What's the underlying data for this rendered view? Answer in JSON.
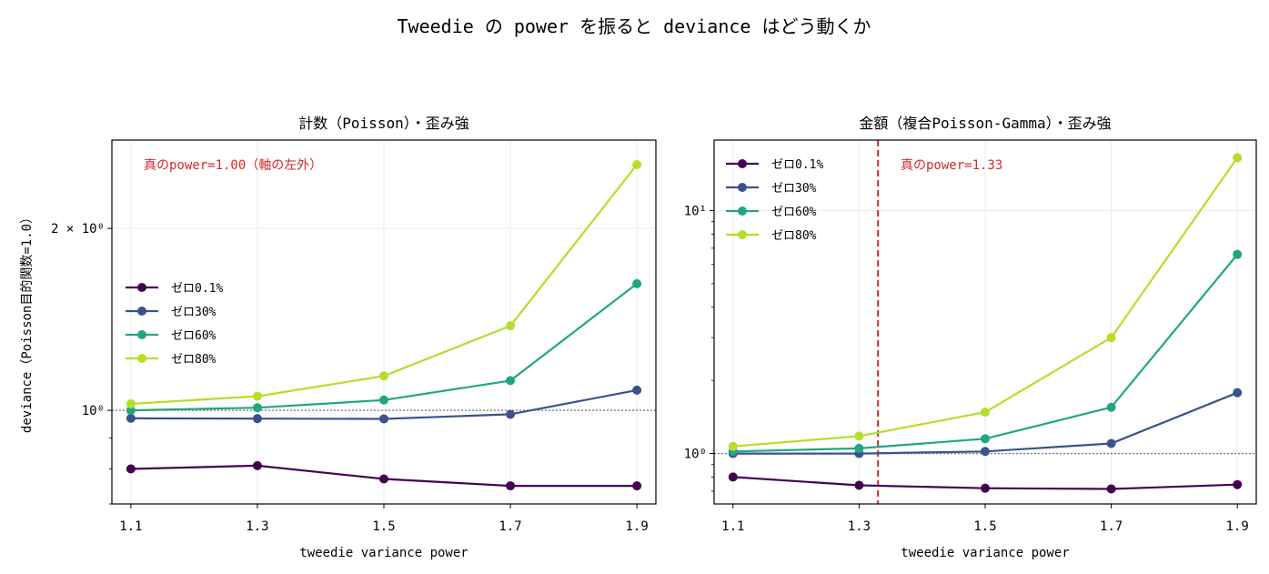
{
  "figure": {
    "title": "Tweedie の power を振ると deviance はどう動くか"
  },
  "chart_data": [
    {
      "type": "line",
      "title": "計数（Poisson）・歪み強",
      "xlabel": "tweedie variance power",
      "ylabel": "deviance（Poisson目的関数=1.0）",
      "yscale": "log",
      "x": [
        1.1,
        1.3,
        1.5,
        1.7,
        1.9
      ],
      "xticks": [
        "1.1",
        "1.3",
        "1.5",
        "1.7",
        "1.9"
      ],
      "ylim": [
        0.7,
        2.8
      ],
      "yticks": [
        {
          "value": 1.0,
          "label": "10⁰"
        },
        {
          "value": 2.0,
          "label": "2 × 10⁰"
        }
      ],
      "reference_line": {
        "y": 1.0,
        "style": "dotted",
        "color": "#808080"
      },
      "annotation": "真のpower=1.00（軸の左外）",
      "legend_position": "center-left",
      "grid": true,
      "series": [
        {
          "name": "ゼロ0.1%",
          "color": "#440154",
          "values": [
            0.8,
            0.81,
            0.77,
            0.75,
            0.75
          ]
        },
        {
          "name": "ゼロ30%",
          "color": "#3b528b",
          "values": [
            0.97,
            0.969,
            0.968,
            0.985,
            1.08
          ]
        },
        {
          "name": "ゼロ60%",
          "color": "#21a585",
          "values": [
            1.0,
            1.01,
            1.04,
            1.12,
            1.62
          ]
        },
        {
          "name": "ゼロ80%",
          "color": "#b5de2b",
          "values": [
            1.025,
            1.055,
            1.14,
            1.38,
            2.55
          ]
        }
      ]
    },
    {
      "type": "line",
      "title": "金額（複合Poisson-Gamma）・歪み強",
      "xlabel": "tweedie variance power",
      "ylabel": "",
      "yscale": "log",
      "x": [
        1.1,
        1.3,
        1.5,
        1.7,
        1.9
      ],
      "xticks": [
        "1.1",
        "1.3",
        "1.5",
        "1.7",
        "1.9"
      ],
      "ylim": [
        0.62,
        19.5
      ],
      "yticks": [
        {
          "value": 1.0,
          "label": "10⁰"
        },
        {
          "value": 10.0,
          "label": "10¹"
        }
      ],
      "reference_line": {
        "y": 1.0,
        "style": "dotted",
        "color": "#808080"
      },
      "true_power_line": {
        "x": 1.33,
        "style": "dashed",
        "color": "#d62728"
      },
      "annotation": "真のpower=1.33",
      "legend_position": "upper-left",
      "grid": true,
      "series": [
        {
          "name": "ゼロ0.1%",
          "color": "#440154",
          "values": [
            0.8,
            0.74,
            0.72,
            0.715,
            0.745
          ]
        },
        {
          "name": "ゼロ30%",
          "color": "#3b528b",
          "values": [
            1.0,
            1.0,
            1.02,
            1.1,
            1.78
          ]
        },
        {
          "name": "ゼロ60%",
          "color": "#21a585",
          "values": [
            1.02,
            1.05,
            1.15,
            1.55,
            6.6
          ]
        },
        {
          "name": "ゼロ80%",
          "color": "#b5de2b",
          "values": [
            1.07,
            1.18,
            1.48,
            3.0,
            16.5
          ]
        }
      ]
    }
  ]
}
